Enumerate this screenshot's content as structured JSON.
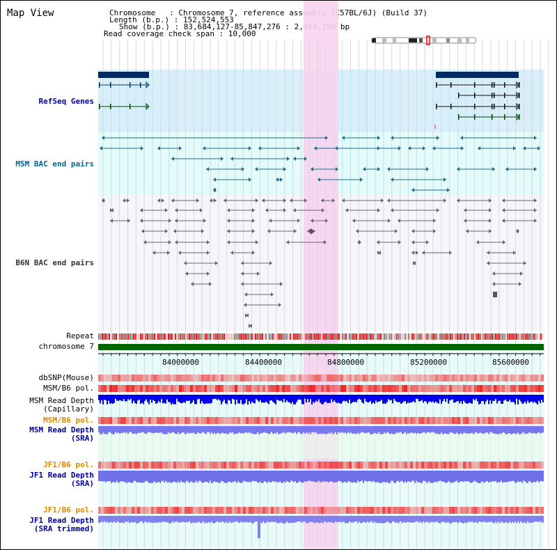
{
  "header": {
    "title": "Map View",
    "info_lines": [
      "Chromosome   : Chromosome 7, reference assembly (C57BL/6J) (Build 37)",
      "Length (b.p.) : 152,524,553",
      "Show (b.p.) : 83,684,127-85,847,276 : 2,163,150 bp",
      "Read coverage check span : 10,000"
    ]
  },
  "tracks": {
    "refseq": {
      "label": "RefSeq Genes",
      "color": "#0000aa"
    },
    "msm_bac": {
      "label": "MSM BAC end pairs",
      "color": "#006699"
    },
    "b6n_bac": {
      "label": "B6N BAC end pairs",
      "color": "#333333"
    },
    "repeat": {
      "label": "Repeat"
    },
    "chromosome": {
      "label": "chromosome 7"
    },
    "dbsnp": {
      "label": "dbSNP(Mouse)"
    },
    "msm_b6_pol_1": {
      "label": "MSM/B6 pol."
    },
    "msm_depth_cap": {
      "label_1": "MSM Read Depth",
      "label_2": "(Capillary)"
    },
    "msm_b6_pol_2": {
      "label": "MSM/B6 pol."
    },
    "msm_depth_sra": {
      "label_1": "MSM Read Depth",
      "label_2": "(SRA)"
    },
    "jf1_b6_pol_1": {
      "label": "JF1/B6 pol."
    },
    "jf1_depth_sra": {
      "label_1": "JF1 Read Depth",
      "label_2": "(SRA)"
    },
    "jf1_b6_pol_2": {
      "label": "JF1/B6 pol."
    },
    "jf1_depth_trim": {
      "label_1": "JF1 Read Depth",
      "label_2": "(SRA trimmed)"
    }
  },
  "axis": {
    "ticks": [
      "84000000",
      "84400000",
      "84800000",
      "85200000",
      "85600000"
    ]
  },
  "colors": {
    "highlight": "#f7d3ef",
    "refseq_bg": "#d6effa",
    "msm_bg": "#e2fbfb",
    "b6n_bg": "#f5f6f9",
    "chrom": "#006600",
    "depth_cap": "#0000ee",
    "depth_sra": "#7777ee",
    "pol": "#ee4444",
    "orange_label": "#dd8800",
    "blue_label": "#000099"
  }
}
